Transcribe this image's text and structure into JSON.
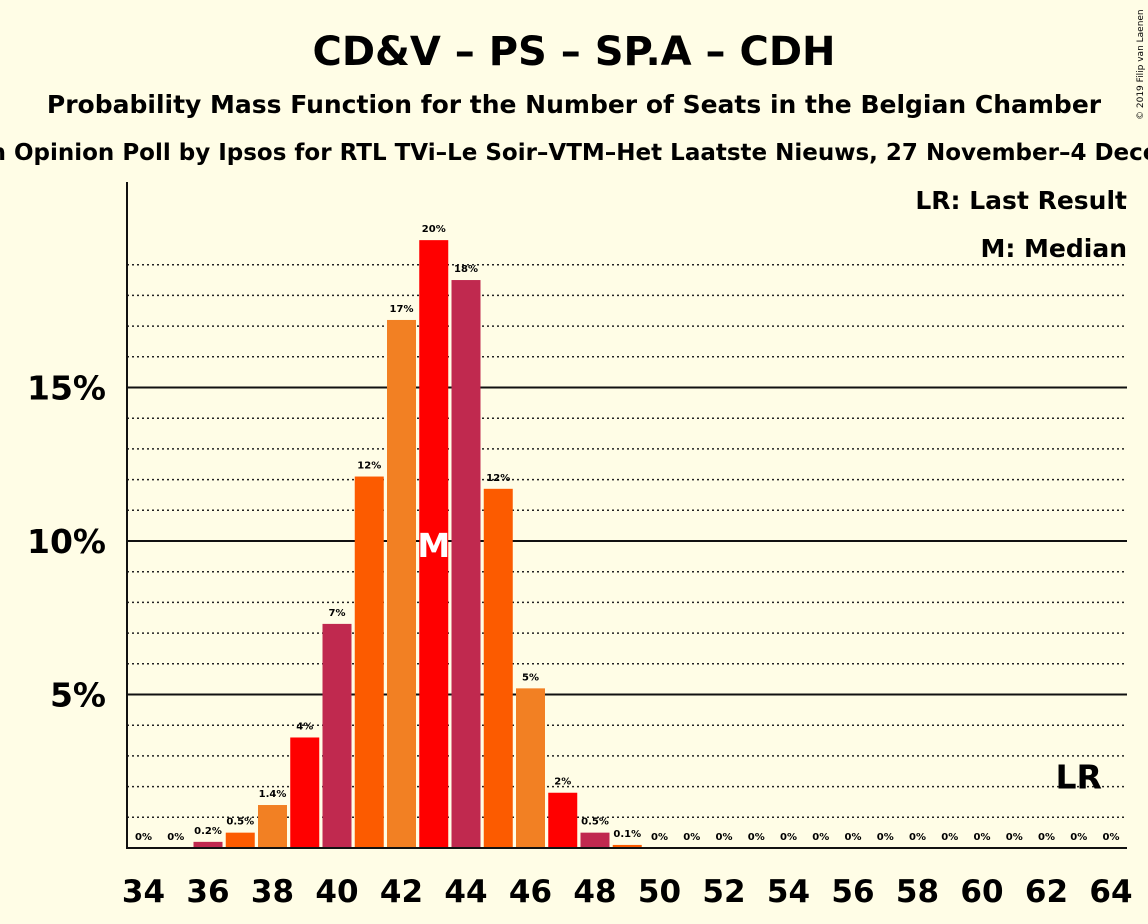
{
  "chart_data": {
    "type": "bar",
    "title": "CD&V – PS – SP.A – CDH",
    "subtitle": "Probability Mass Function for the Number of Seats in the Belgian Chamber",
    "subtitle2": "n Opinion Poll by Ipsos for RTL TVi–Le Soir–VTM–Het Laatste Nieuws, 27 November–4 Dece",
    "copyright": "© 2019 Filip van Laenen",
    "x": [
      34,
      35,
      36,
      37,
      38,
      39,
      40,
      41,
      42,
      43,
      44,
      45,
      46,
      47,
      48,
      49,
      50,
      51,
      52,
      53,
      54,
      55,
      56,
      57,
      58,
      59,
      60,
      61,
      62,
      63,
      64
    ],
    "values": [
      0,
      0,
      0.2,
      0.5,
      1.4,
      3.6,
      7.3,
      12.1,
      17.2,
      19.8,
      18.5,
      11.7,
      5.2,
      1.8,
      0.5,
      0.1,
      0,
      0,
      0,
      0,
      0,
      0,
      0,
      0,
      0,
      0,
      0,
      0,
      0,
      0,
      0
    ],
    "data_labels": [
      "0%",
      "0%",
      "0.2%",
      "0.5%",
      "1.4%",
      "4%",
      "7%",
      "12%",
      "17%",
      "20%",
      "18%",
      "12%",
      "5%",
      "2%",
      "0.5%",
      "0.1%",
      "0%",
      "0%",
      "0%",
      "0%",
      "0%",
      "0%",
      "0%",
      "0%",
      "0%",
      "0%",
      "0%",
      "0%",
      "0%",
      "0%",
      "0%"
    ],
    "x_tick_labels": [
      "34",
      "36",
      "38",
      "40",
      "42",
      "44",
      "46",
      "48",
      "50",
      "52",
      "54",
      "56",
      "58",
      "60",
      "62",
      "64"
    ],
    "y_ticks": [
      5,
      10,
      15
    ],
    "y_tick_labels": [
      "5%",
      "10%",
      "15%"
    ],
    "ylim": [
      0,
      21.5
    ],
    "minor_grid_step": 1,
    "median": 43,
    "median_label": "M",
    "last_result": 63,
    "last_result_label": "LR",
    "legend": [
      "LR: Last Result",
      "M: Median"
    ],
    "colors": [
      "#f28023",
      "#ff0000",
      "#c0294f",
      "#fc5b00"
    ]
  }
}
